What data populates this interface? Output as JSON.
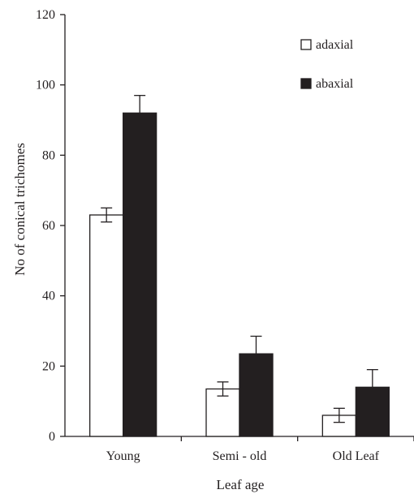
{
  "chart_data": {
    "type": "bar",
    "title": "",
    "xlabel": "Leaf age",
    "ylabel": "No of conical trichomes",
    "categories": [
      "Young",
      "Semi - old",
      "Old Leaf"
    ],
    "series": [
      {
        "name": "adaxial",
        "values": [
          63,
          13.5,
          6
        ],
        "errors": [
          2,
          2,
          2
        ],
        "color": "#ffffff"
      },
      {
        "name": "abaxial",
        "values": [
          92,
          23.5,
          14
        ],
        "errors": [
          5,
          5,
          5
        ],
        "color": "#231f20"
      }
    ],
    "ylim": [
      0,
      120
    ],
    "yticks": [
      "0",
      "20",
      "40",
      "60",
      "80",
      "100",
      "120"
    ],
    "grid": false,
    "legend_position": "top-right"
  }
}
